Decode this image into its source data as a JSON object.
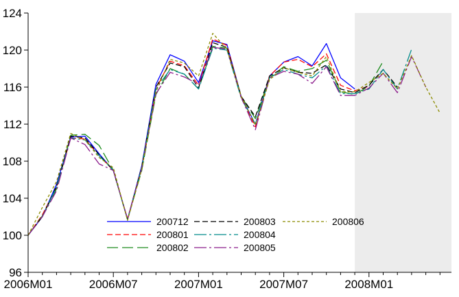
{
  "chart_data": {
    "type": "line",
    "title": "",
    "xlabel": "",
    "ylabel": "",
    "x_tick_labels": [
      "2006M01",
      "2006M07",
      "2007M01",
      "2007M07",
      "2008M01"
    ],
    "x_ticks_at_index": [
      0,
      6,
      12,
      18,
      24
    ],
    "y_ticks": [
      96,
      100,
      104,
      108,
      112,
      116,
      120,
      124
    ],
    "ylim": [
      96,
      124
    ],
    "x_range_months": [
      "2006M01",
      "2008M07"
    ],
    "shaded_region": {
      "from": "2007M12",
      "to": "2008M07",
      "color": "#ececec"
    },
    "legend_placement": "bottom-center",
    "series": [
      {
        "name": "200712",
        "color": "#0000ff",
        "dash": "",
        "values": [
          100,
          102,
          105.5,
          110.6,
          110.7,
          108.8,
          107,
          101.7,
          107.5,
          116.3,
          119.5,
          118.8,
          116.5,
          121,
          120.6,
          115,
          112,
          117.2,
          118.7,
          119.3,
          118.3,
          120.7,
          117,
          115.8
        ]
      },
      {
        "name": "200801",
        "color": "#ff0000",
        "dash": "8,4",
        "values": [
          100,
          102.2,
          105.2,
          110.5,
          110.4,
          108.6,
          107,
          101.7,
          107.3,
          115.8,
          118.8,
          118.3,
          116.2,
          121.2,
          120.5,
          115,
          111.7,
          117.2,
          118.7,
          119,
          118.2,
          119.6,
          116.2,
          115.6,
          116.1
        ]
      },
      {
        "name": "200802",
        "color": "#1a8a1a",
        "dash": "16,6",
        "values": [
          100,
          102.1,
          105,
          110.8,
          110.9,
          109.7,
          107,
          101.7,
          107,
          115.2,
          118,
          117.4,
          115.8,
          120.4,
          120.2,
          115,
          112.6,
          117,
          118.2,
          117.7,
          118,
          118.9,
          115.5,
          115.2,
          116.1,
          118.8
        ]
      },
      {
        "name": "200803",
        "color": "#000000",
        "dash": "8,4",
        "values": [
          100,
          102,
          105.3,
          110.7,
          110.5,
          108.7,
          107,
          101.7,
          107.4,
          116,
          118.6,
          118.2,
          115.9,
          120.8,
          120.3,
          115,
          112.8,
          117.2,
          118.1,
          117.6,
          117.5,
          118.4,
          115.8,
          115.4,
          116.2,
          117.9,
          116
        ]
      },
      {
        "name": "200804",
        "color": "#008b8b",
        "dash": "18,4,3,4",
        "values": [
          100,
          102,
          105.2,
          110.5,
          110.3,
          108.6,
          107,
          101.7,
          107.3,
          115.8,
          117.9,
          117.4,
          115.8,
          120.2,
          120,
          114.8,
          112,
          117,
          117.9,
          117.4,
          117,
          118.3,
          115.3,
          115.3,
          115.8,
          117.9,
          115.8,
          120.1
        ]
      },
      {
        "name": "200805",
        "color": "#8b1a8b",
        "dash": "18,4,3,4",
        "values": [
          100,
          102,
          104.8,
          110.5,
          109.8,
          107.7,
          107,
          101.8,
          107.2,
          115.3,
          117.6,
          117.1,
          116.3,
          120.3,
          120.1,
          114.9,
          111.4,
          117,
          117.7,
          117.4,
          116.4,
          118.2,
          115.1,
          115.1,
          115.9,
          117.5,
          115.4,
          119.3,
          116
        ]
      },
      {
        "name": "200806",
        "color": "#8b8b00",
        "dash": "4,3",
        "values": [
          100,
          103,
          105.8,
          111,
          110.3,
          108.4,
          107.3,
          101.6,
          107.1,
          115.5,
          119,
          118.6,
          117.2,
          121.8,
          120.1,
          115,
          111.9,
          116.8,
          118.1,
          117.6,
          117.2,
          119.3,
          115.5,
          115.5,
          116.5,
          117.5,
          115.8,
          119.4,
          116,
          113.2
        ]
      }
    ]
  }
}
